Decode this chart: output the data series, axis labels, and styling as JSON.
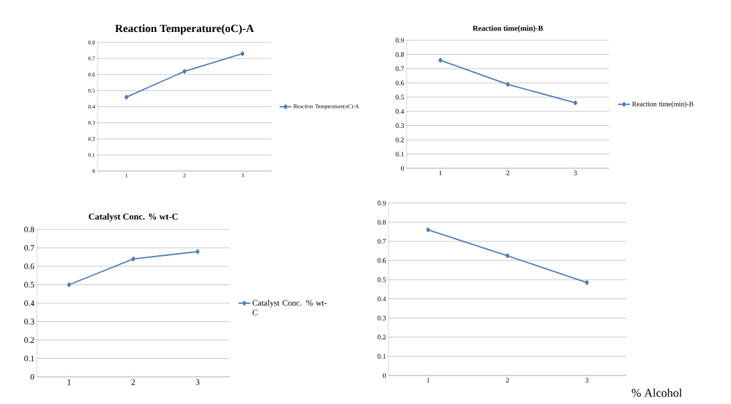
{
  "chart_data": [
    {
      "type": "line",
      "title": "Reaction Temperature(oC)-A",
      "categories": [
        "1",
        "2",
        "3"
      ],
      "series": [
        {
          "name": "Reaction Temperature(oC)-A",
          "color": "#4a7ebb",
          "values": [
            0.46,
            0.62,
            0.73
          ]
        }
      ],
      "ylim": [
        0,
        0.8
      ],
      "yticks": [
        0,
        0.1,
        0.2,
        0.3,
        0.4,
        0.5,
        0.6,
        0.7,
        0.8
      ],
      "grid": "y",
      "legend": "right",
      "marker": "diamond"
    },
    {
      "type": "line",
      "title": "Reaction time(min)-B",
      "categories": [
        "1",
        "2",
        "3"
      ],
      "series": [
        {
          "name": "Reaction time(min)-B",
          "color": "#4a7ebb",
          "values": [
            0.76,
            0.59,
            0.46
          ]
        }
      ],
      "ylim": [
        0,
        0.9
      ],
      "yticks": [
        0,
        0.1,
        0.2,
        0.3,
        0.4,
        0.5,
        0.6,
        0.7,
        0.8,
        0.9
      ],
      "grid": "y",
      "legend": "right",
      "marker": "diamond"
    },
    {
      "type": "line",
      "title": "Catalyst Conc. % wt-C",
      "categories": [
        "1",
        "2",
        "3"
      ],
      "series": [
        {
          "name": "Catalyst Conc. % wt-C",
          "color": "#4a7ebb",
          "values": [
            0.5,
            0.64,
            0.68
          ]
        }
      ],
      "ylim": [
        0,
        0.8
      ],
      "yticks": [
        0,
        0.1,
        0.2,
        0.3,
        0.4,
        0.5,
        0.6,
        0.7,
        0.8
      ],
      "grid": "y",
      "legend": "right",
      "marker": "diamond"
    },
    {
      "type": "line",
      "categories": [
        "1",
        "2",
        "3"
      ],
      "series": [
        {
          "color": "#4a7ebb",
          "values": [
            0.76,
            0.625,
            0.485
          ]
        }
      ],
      "ylim": [
        0,
        0.9
      ],
      "yticks": [
        0,
        0.1,
        0.2,
        0.3,
        0.4,
        0.5,
        0.6,
        0.7,
        0.8,
        0.9
      ],
      "grid": "y",
      "marker": "diamond",
      "annotations": [
        "% Alcohol"
      ]
    }
  ]
}
